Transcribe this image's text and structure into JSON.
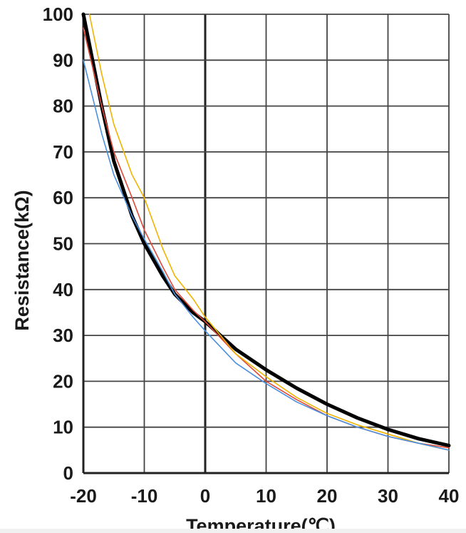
{
  "chart_data": {
    "type": "line",
    "title": "",
    "xlabel": "Temperature(℃)",
    "ylabel": "Resistance(kΩ)",
    "xlim": [
      -20,
      40
    ],
    "ylim": [
      0,
      100
    ],
    "x_ticks": [
      -20,
      -10,
      0,
      10,
      20,
      30,
      40
    ],
    "y_ticks": [
      0,
      10,
      20,
      30,
      40,
      50,
      60,
      70,
      80,
      90,
      100
    ],
    "grid": true,
    "legend": "none",
    "series": [
      {
        "color": "#000000",
        "x": [
          -20,
          -17,
          -15,
          -12,
          -10,
          -7,
          -5,
          -2,
          0,
          5,
          10,
          15,
          20,
          25,
          30,
          35,
          40
        ],
        "values": [
          100,
          80,
          68,
          56,
          50,
          43,
          39,
          35,
          33,
          27,
          22.5,
          18.5,
          15,
          12,
          9.5,
          7.5,
          6
        ]
      },
      {
        "color": "#e0483a",
        "x": [
          -20,
          -17,
          -15,
          -12,
          -10,
          -7,
          -5,
          -2,
          0,
          5,
          10,
          15,
          20,
          25,
          30,
          35,
          40
        ],
        "values": [
          97,
          80,
          70,
          60,
          53,
          45,
          40,
          35.5,
          33,
          26,
          20,
          16,
          12.5,
          10,
          8,
          6.5,
          5.5
        ]
      },
      {
        "color": "#f0b400",
        "x": [
          -19,
          -17,
          -15,
          -12,
          -10,
          -7,
          -5,
          -2,
          0,
          5,
          10,
          15,
          20,
          25,
          30,
          35,
          40
        ],
        "values": [
          100,
          87,
          76,
          65,
          60,
          49,
          43,
          38,
          34,
          26,
          21,
          16.5,
          13,
          10.5,
          8.5,
          6.5,
          5
        ]
      },
      {
        "color": "#4a90e0",
        "x": [
          -20,
          -17,
          -15,
          -12,
          -10,
          -7,
          -5,
          -2,
          0,
          5,
          10,
          15,
          20,
          25,
          30,
          35,
          40
        ],
        "values": [
          90,
          74,
          65,
          56,
          51,
          44,
          39,
          34,
          31,
          24,
          19.5,
          15.5,
          12.5,
          10,
          8,
          6.5,
          5
        ]
      }
    ]
  }
}
